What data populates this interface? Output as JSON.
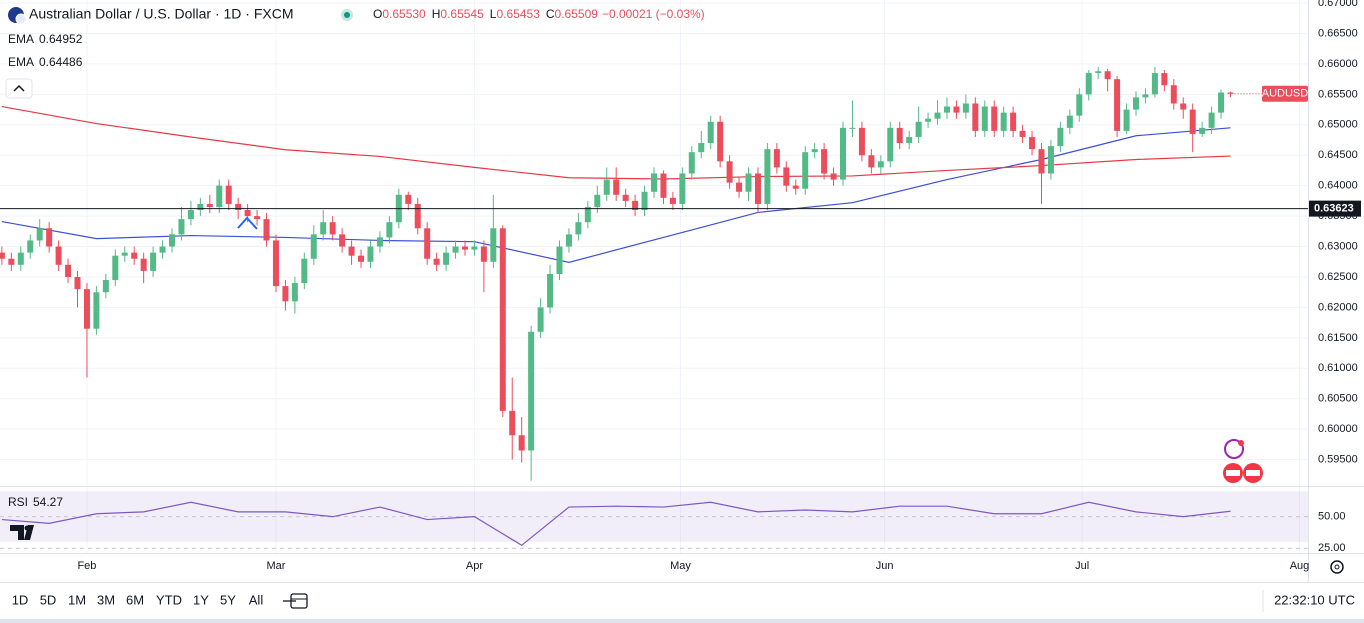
{
  "chart_data": {
    "type": "candlestick",
    "title": "Australian Dollar / U.S. Dollar · 1D · FXCM",
    "ohlc": [
      {
        "label": "O",
        "value": "0.65530"
      },
      {
        "label": "H",
        "value": "0.65545"
      },
      {
        "label": "L",
        "value": "0.65453"
      },
      {
        "label": "C",
        "value": "0.65509"
      }
    ],
    "change": "−0.00021 (−0.03%)",
    "symbol_tag": "AUDUSD",
    "up_color": "#53b987",
    "down_color": "#eb4d5c",
    "open": [
      0.629,
      0.628,
      0.627,
      0.629,
      0.631,
      0.633,
      0.63,
      0.627,
      0.625,
      0.623,
      0.6165,
      0.6225,
      0.6245,
      0.6285,
      0.629,
      0.628,
      0.626,
      0.629,
      0.63,
      0.632,
      0.6345,
      0.636,
      0.637,
      0.6365,
      0.64,
      0.637,
      0.636,
      0.635,
      0.6345,
      0.631,
      0.6235,
      0.621,
      0.624,
      0.628,
      0.632,
      0.634,
      0.632,
      0.63,
      0.6285,
      0.6275,
      0.63,
      0.6315,
      0.634,
      0.6385,
      0.637,
      0.633,
      0.628,
      0.627,
      0.629,
      0.63,
      0.6295,
      0.63,
      0.6275,
      0.633,
      0.603,
      0.599,
      0.5965,
      0.616,
      0.62,
      0.6255,
      0.63,
      0.632,
      0.634,
      0.6365,
      0.6385,
      0.641,
      0.6385,
      0.6375,
      0.636,
      0.639,
      0.642,
      0.638,
      0.637,
      0.642,
      0.6455,
      0.647,
      0.6505,
      0.644,
      0.6405,
      0.639,
      0.642,
      0.637,
      0.646,
      0.643,
      0.64,
      0.6395,
      0.6455,
      0.646,
      0.642,
      0.641,
      0.6495,
      0.6495,
      0.645,
      0.643,
      0.644,
      0.6495,
      0.647,
      0.648,
      0.6505,
      0.651,
      0.652,
      0.653,
      0.652,
      0.6535,
      0.649,
      0.653,
      0.649,
      0.652,
      0.649,
      0.648,
      0.646,
      0.642,
      0.6465,
      0.6495,
      0.6515,
      0.655,
      0.6585,
      0.6588,
      0.6575,
      0.649,
      0.6525,
      0.6545,
      0.655,
      0.6585,
      0.6565,
      0.6535,
      0.6525,
      0.6485,
      0.6495,
      0.652,
      0.6553
    ],
    "high": [
      0.63,
      0.629,
      0.63,
      0.632,
      0.6345,
      0.634,
      0.631,
      0.628,
      0.626,
      0.624,
      0.6235,
      0.6255,
      0.6295,
      0.63,
      0.63,
      0.629,
      0.63,
      0.631,
      0.633,
      0.6365,
      0.6375,
      0.638,
      0.6385,
      0.641,
      0.641,
      0.638,
      0.637,
      0.636,
      0.6355,
      0.632,
      0.6245,
      0.625,
      0.629,
      0.6335,
      0.636,
      0.635,
      0.633,
      0.631,
      0.6295,
      0.631,
      0.6325,
      0.635,
      0.6395,
      0.639,
      0.638,
      0.634,
      0.629,
      0.63,
      0.631,
      0.631,
      0.631,
      0.631,
      0.6385,
      0.6335,
      0.6085,
      0.602,
      0.617,
      0.6215,
      0.627,
      0.631,
      0.633,
      0.6355,
      0.6375,
      0.64,
      0.643,
      0.643,
      0.6395,
      0.6385,
      0.64,
      0.643,
      0.6425,
      0.639,
      0.643,
      0.6465,
      0.649,
      0.6515,
      0.6515,
      0.645,
      0.6415,
      0.643,
      0.643,
      0.647,
      0.647,
      0.644,
      0.641,
      0.6465,
      0.647,
      0.647,
      0.643,
      0.6505,
      0.654,
      0.6505,
      0.646,
      0.645,
      0.6505,
      0.6505,
      0.649,
      0.653,
      0.652,
      0.654,
      0.6545,
      0.654,
      0.655,
      0.6545,
      0.654,
      0.654,
      0.653,
      0.653,
      0.65,
      0.649,
      0.647,
      0.6475,
      0.6505,
      0.6525,
      0.656,
      0.659,
      0.6595,
      0.6592,
      0.658,
      0.6535,
      0.6555,
      0.656,
      0.6595,
      0.659,
      0.6575,
      0.6545,
      0.6535,
      0.6505,
      0.653,
      0.6558,
      0.65545
    ],
    "low": [
      0.627,
      0.626,
      0.626,
      0.628,
      0.63,
      0.629,
      0.626,
      0.624,
      0.62,
      0.6085,
      0.6155,
      0.6215,
      0.6235,
      0.6275,
      0.627,
      0.624,
      0.625,
      0.628,
      0.629,
      0.631,
      0.6335,
      0.635,
      0.6355,
      0.6355,
      0.636,
      0.6345,
      0.634,
      0.6335,
      0.63,
      0.6225,
      0.6195,
      0.619,
      0.623,
      0.627,
      0.631,
      0.631,
      0.629,
      0.627,
      0.6265,
      0.6265,
      0.629,
      0.6305,
      0.633,
      0.636,
      0.632,
      0.627,
      0.626,
      0.626,
      0.628,
      0.6285,
      0.6285,
      0.6225,
      0.6265,
      0.602,
      0.595,
      0.5945,
      0.5915,
      0.615,
      0.619,
      0.6245,
      0.629,
      0.631,
      0.633,
      0.6355,
      0.6375,
      0.6375,
      0.6365,
      0.635,
      0.635,
      0.638,
      0.637,
      0.636,
      0.636,
      0.641,
      0.6445,
      0.646,
      0.643,
      0.6395,
      0.638,
      0.6375,
      0.6355,
      0.636,
      0.642,
      0.639,
      0.6385,
      0.6385,
      0.6445,
      0.641,
      0.64,
      0.64,
      0.648,
      0.644,
      0.642,
      0.642,
      0.643,
      0.646,
      0.646,
      0.647,
      0.6495,
      0.65,
      0.651,
      0.651,
      0.651,
      0.648,
      0.648,
      0.648,
      0.648,
      0.648,
      0.647,
      0.645,
      0.637,
      0.641,
      0.6455,
      0.6485,
      0.6505,
      0.654,
      0.6575,
      0.6555,
      0.648,
      0.6485,
      0.6515,
      0.6535,
      0.6545,
      0.6555,
      0.6525,
      0.651,
      0.6455,
      0.648,
      0.6485,
      0.651,
      0.65453
    ],
    "close": [
      0.628,
      0.627,
      0.629,
      0.631,
      0.633,
      0.63,
      0.627,
      0.625,
      0.623,
      0.6165,
      0.6225,
      0.6245,
      0.6285,
      0.629,
      0.628,
      0.626,
      0.629,
      0.63,
      0.632,
      0.6345,
      0.636,
      0.637,
      0.6365,
      0.64,
      0.637,
      0.636,
      0.635,
      0.6345,
      0.631,
      0.6235,
      0.621,
      0.624,
      0.628,
      0.632,
      0.634,
      0.632,
      0.63,
      0.6285,
      0.6275,
      0.63,
      0.6315,
      0.634,
      0.6385,
      0.637,
      0.633,
      0.628,
      0.627,
      0.629,
      0.63,
      0.6295,
      0.63,
      0.6275,
      0.633,
      0.603,
      0.599,
      0.5965,
      0.616,
      0.62,
      0.6255,
      0.63,
      0.632,
      0.634,
      0.6365,
      0.6385,
      0.641,
      0.6385,
      0.6375,
      0.636,
      0.639,
      0.642,
      0.638,
      0.637,
      0.642,
      0.6455,
      0.647,
      0.6505,
      0.644,
      0.6405,
      0.639,
      0.642,
      0.637,
      0.646,
      0.643,
      0.64,
      0.6395,
      0.6455,
      0.646,
      0.642,
      0.641,
      0.6495,
      0.6495,
      0.645,
      0.643,
      0.644,
      0.6495,
      0.647,
      0.648,
      0.6505,
      0.651,
      0.652,
      0.653,
      0.652,
      0.6535,
      0.649,
      0.653,
      0.649,
      0.652,
      0.649,
      0.648,
      0.646,
      0.642,
      0.6465,
      0.6495,
      0.6515,
      0.655,
      0.6585,
      0.6588,
      0.6575,
      0.649,
      0.6525,
      0.6545,
      0.655,
      0.6585,
      0.6565,
      0.6535,
      0.6525,
      0.6485,
      0.6495,
      0.652,
      0.6553,
      0.65509
    ],
    "overlays": [
      {
        "name": "EMA",
        "legend_value": "0.64952",
        "color": "#3d4fd6",
        "x": [
          0,
          10,
          20,
          30,
          40,
          50,
          60,
          70,
          80,
          90,
          100,
          110,
          120,
          130
        ],
        "values": [
          0.6341,
          0.6313,
          0.6318,
          0.6315,
          0.631,
          0.6308,
          0.6274,
          0.6315,
          0.6356,
          0.6372,
          0.641,
          0.6443,
          0.6482,
          0.6495
        ]
      },
      {
        "name": "EMA",
        "legend_value": "0.64486",
        "color": "#e53945",
        "x": [
          0,
          10,
          20,
          30,
          40,
          50,
          60,
          70,
          80,
          90,
          100,
          110,
          120,
          130
        ],
        "values": [
          0.653,
          0.6502,
          0.648,
          0.6459,
          0.6448,
          0.643,
          0.6413,
          0.6411,
          0.6415,
          0.6416,
          0.6425,
          0.6433,
          0.6443,
          0.64486
        ]
      }
    ],
    "hline": {
      "value": 0.63623,
      "label": "0.63623"
    },
    "xlim": [
      -0.2,
      138.2
    ],
    "xticks": [
      {
        "value": 9,
        "label": "Feb"
      },
      {
        "value": 29,
        "label": "Mar"
      },
      {
        "value": 50,
        "label": "Apr"
      },
      {
        "value": 71.8,
        "label": "May"
      },
      {
        "value": 93.4,
        "label": "Jun"
      },
      {
        "value": 114.3,
        "label": "Jul"
      },
      {
        "value": 137.3,
        "label": "Aug"
      }
    ],
    "ylim": [
      0.5905,
      0.6705
    ],
    "yticks": [
      {
        "value": 0.595,
        "label": "0.59500"
      },
      {
        "value": 0.6,
        "label": "0.60000"
      },
      {
        "value": 0.605,
        "label": "0.60500"
      },
      {
        "value": 0.61,
        "label": "0.61000"
      },
      {
        "value": 0.615,
        "label": "0.61500"
      },
      {
        "value": 0.62,
        "label": "0.62000"
      },
      {
        "value": 0.625,
        "label": "0.62500"
      },
      {
        "value": 0.63,
        "label": "0.63000"
      },
      {
        "value": 0.635,
        "label": "0.63500"
      },
      {
        "value": 0.64,
        "label": "0.64000"
      },
      {
        "value": 0.645,
        "label": "0.64500"
      },
      {
        "value": 0.65,
        "label": "0.65000"
      },
      {
        "value": 0.655,
        "label": "0.65500"
      },
      {
        "value": 0.66,
        "label": "0.66000"
      },
      {
        "value": 0.665,
        "label": "0.66500"
      },
      {
        "value": 0.67,
        "label": "0.67000"
      }
    ],
    "grid": true,
    "rsi": {
      "name": "RSI",
      "legend_value": "54.27",
      "color": "#7e57c2",
      "band": [
        30,
        70
      ],
      "x": [
        0,
        5,
        10,
        15,
        20,
        25,
        30,
        35,
        40,
        45,
        50,
        55,
        60,
        65,
        70,
        75,
        80,
        85,
        90,
        95,
        100,
        105,
        110,
        115,
        120,
        125,
        130
      ],
      "values": [
        47.7,
        44.7,
        52.3,
        53.8,
        61.4,
        53.8,
        53.8,
        50,
        57.6,
        47.7,
        50,
        27.3,
        57.6,
        58.3,
        57.6,
        61.4,
        53.8,
        55.3,
        53.8,
        58.3,
        58.3,
        52.3,
        52.3,
        61.4,
        53.8,
        50,
        54.27
      ],
      "ylim": [
        21.2,
        73.5
      ],
      "yticks": [
        {
          "value": 50,
          "label": "50.00"
        },
        {
          "value": 25,
          "label": "25.00"
        }
      ]
    },
    "timeframes": [
      "1D",
      "5D",
      "1M",
      "3M",
      "6M",
      "YTD",
      "1Y",
      "5Y",
      "All"
    ],
    "clock": "22:32:10 UTC"
  }
}
